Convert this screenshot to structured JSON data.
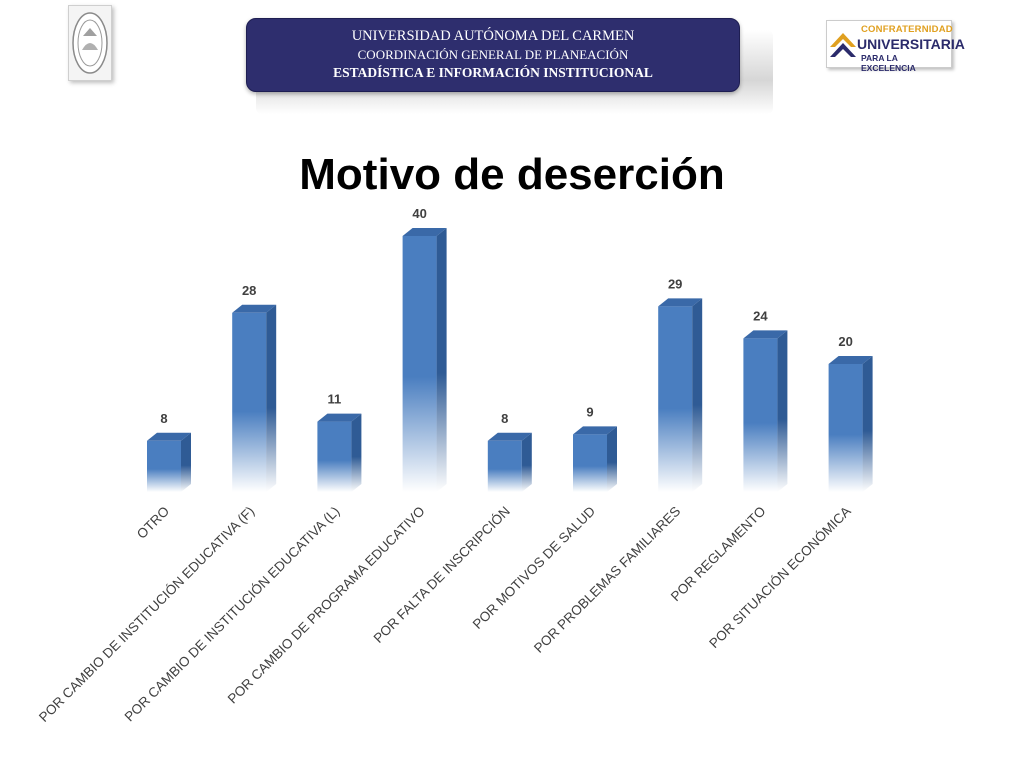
{
  "header": {
    "line1": "UNIVERSIDAD AUTÓNOMA DEL CARMEN",
    "line2": "COORDINACIÓN GENERAL DE PLANEACIÓN",
    "line3": "ESTADÍSTICA E INFORMACIÓN INSTITUCIONAL"
  },
  "logo_right": {
    "line1": "CONFRATERNIDAD",
    "line2": "UNIVERSITARIA",
    "line3": "PARA LA EXCELENCIA"
  },
  "colors": {
    "bar_top": "#4a7ec0",
    "bar_side": "#2f5b95",
    "bar_cap": "#3a69a8",
    "banner": "#2e2e6e"
  },
  "chart_data": {
    "type": "bar",
    "title": "Motivo de deserción",
    "categories": [
      "OTRO",
      "POR CAMBIO DE INSTITUCIÓN EDUCATIVA (F)",
      "POR CAMBIO DE INSTITUCIÓN EDUCATIVA (L)",
      "POR CAMBIO DE PROGRAMA EDUCATIVO",
      "POR FALTA DE INSCRIPCIÓN",
      "POR MOTIVOS DE SALUD",
      "POR PROBLEMAS FAMILIARES",
      "POR REGLAMENTO",
      "POR SITUACIÓN ECONÓMICA"
    ],
    "values": [
      8,
      28,
      11,
      40,
      8,
      9,
      29,
      24,
      20
    ],
    "ylim": [
      0,
      40
    ],
    "grid": false,
    "data_labels": true
  }
}
